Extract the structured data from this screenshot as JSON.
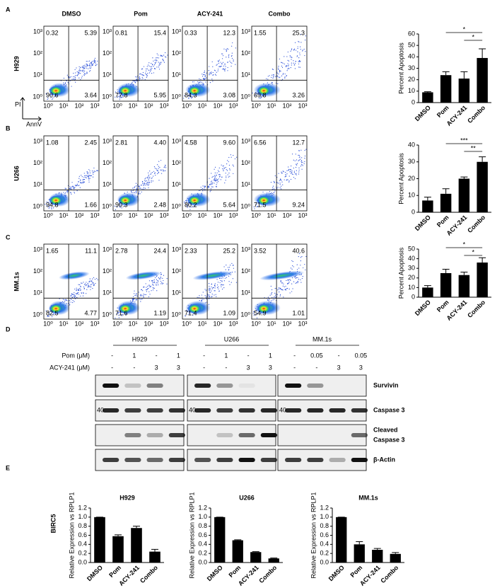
{
  "panel_letters": [
    "A",
    "B",
    "C",
    "D",
    "E"
  ],
  "flow": {
    "columns": [
      "DMSO",
      "Pom",
      "ACY-241",
      "Combo"
    ],
    "y_label": "PI",
    "x_label": "AnnV",
    "axis_ticks": [
      "10⁰",
      "10¹",
      "10²",
      "10³"
    ],
    "rows": [
      {
        "name": "H929",
        "plots": [
          [
            "0.32",
            "5.39",
            "90.6",
            "3.64"
          ],
          [
            "0.81",
            "15.4",
            "77.8",
            "5.95"
          ],
          [
            "0.33",
            "12.3",
            "84.3",
            "3.08"
          ],
          [
            "1.55",
            "25.3",
            "69.8",
            "3.26"
          ]
        ]
      },
      {
        "name": "U266",
        "plots": [
          [
            "1.08",
            "2.45",
            "94.8",
            "1.66"
          ],
          [
            "2.81",
            "4.40",
            "90.3",
            "2.48"
          ],
          [
            "4.58",
            "9.60",
            "80.2",
            "5.64"
          ],
          [
            "6.56",
            "12.7",
            "71.5",
            "9.24"
          ]
        ]
      },
      {
        "name": "MM.1s",
        "plots": [
          [
            "1.65",
            "11.1",
            "82.5",
            "4.77"
          ],
          [
            "2.78",
            "24.4",
            "71.6",
            "1.19"
          ],
          [
            "2.33",
            "25.2",
            "71.4",
            "1.09"
          ],
          [
            "3.52",
            "40.6",
            "54.9",
            "1.01"
          ]
        ]
      }
    ]
  },
  "chart_data": [
    {
      "type": "bar",
      "ylabel": "Percent Apoptosis",
      "categories": [
        "DMSO",
        "Pom",
        "ACY-241",
        "Combo"
      ],
      "values": [
        9,
        24,
        21,
        39
      ],
      "errors": [
        0.5,
        3,
        6,
        8
      ],
      "color": "#000000",
      "ylim": [
        0,
        60
      ],
      "yticks": [
        0,
        10,
        20,
        30,
        40,
        50,
        60
      ],
      "significance": [
        {
          "label": "*",
          "between": [
            "Pom",
            "Combo"
          ]
        },
        {
          "label": "*",
          "between": [
            "ACY-241",
            "Combo"
          ]
        }
      ]
    },
    {
      "type": "bar",
      "ylabel": "Percent Apoptosis",
      "categories": [
        "DMSO",
        "Pom",
        "ACY-241",
        "Combo"
      ],
      "values": [
        7,
        11,
        20,
        30
      ],
      "errors": [
        2,
        3,
        1,
        3
      ],
      "color": "#000000",
      "ylim": [
        0,
        40
      ],
      "yticks": [
        0,
        10,
        20,
        30,
        40
      ],
      "significance": [
        {
          "label": "***",
          "between": [
            "Pom",
            "Combo"
          ]
        },
        {
          "label": "**",
          "between": [
            "ACY-241",
            "Combo"
          ]
        }
      ]
    },
    {
      "type": "bar",
      "ylabel": "Percent Apoptosis",
      "categories": [
        "DMSO",
        "Pom",
        "ACY-241",
        "Combo"
      ],
      "values": [
        10,
        25,
        23,
        36
      ],
      "errors": [
        2,
        4,
        3,
        5
      ],
      "color": "#000000",
      "ylim": [
        0,
        50
      ],
      "yticks": [
        0,
        10,
        20,
        30,
        40,
        50
      ],
      "significance": [
        {
          "label": "*",
          "between": [
            "Pom",
            "Combo"
          ]
        },
        {
          "label": "*",
          "between": [
            "ACY-241",
            "Combo"
          ]
        }
      ]
    },
    {
      "type": "bar",
      "title": "H929",
      "ylabel": "Relative Expression vs RPLP1",
      "categories": [
        "DMSO",
        "Pom",
        "ACY-241",
        "Combo"
      ],
      "values": [
        1.0,
        0.58,
        0.76,
        0.24
      ],
      "errors": [
        0,
        0.03,
        0.04,
        0.05
      ],
      "color": "#000000",
      "ylim": [
        0,
        1.2
      ],
      "yticks": [
        {
          "value": 0,
          "label": "0.0"
        },
        {
          "value": 0.2,
          "label": "0.2"
        },
        {
          "value": 0.4,
          "label": "0.4"
        },
        {
          "value": 0.6,
          "label": "0.6"
        },
        {
          "value": 0.8,
          "label": "0.8"
        },
        {
          "value": 1,
          "label": "1.0"
        },
        {
          "value": 1.2,
          "label": "1.2"
        }
      ]
    },
    {
      "type": "bar",
      "title": "U266",
      "ylabel": "Relative Expression vs RPLP1",
      "categories": [
        "DMSO",
        "Pom",
        "ACY-241",
        "Combo"
      ],
      "values": [
        1.0,
        0.49,
        0.23,
        0.09
      ],
      "errors": [
        0,
        0.01,
        0.01,
        0.01
      ],
      "color": "#000000",
      "ylim": [
        0,
        1.2
      ],
      "yticks": [
        {
          "value": 0,
          "label": "0.0"
        },
        {
          "value": 0.2,
          "label": "0.2"
        },
        {
          "value": 0.4,
          "label": "0.4"
        },
        {
          "value": 0.6,
          "label": "0.6"
        },
        {
          "value": 0.8,
          "label": "0.8"
        },
        {
          "value": 1,
          "label": "1.0"
        },
        {
          "value": 1.2,
          "label": "1.2"
        }
      ]
    },
    {
      "type": "bar",
      "title": "MM.1s",
      "ylabel": "Relative Expression vs RPLP1",
      "categories": [
        "DMSO",
        "Pom",
        "ACY-241",
        "Combo"
      ],
      "values": [
        1.0,
        0.4,
        0.28,
        0.19
      ],
      "errors": [
        0,
        0.06,
        0.03,
        0.03
      ],
      "color": "#000000",
      "ylim": [
        0,
        1.2
      ],
      "yticks": [
        {
          "value": 0,
          "label": "0.0"
        },
        {
          "value": 0.2,
          "label": "0.2"
        },
        {
          "value": 0.4,
          "label": "0.4"
        },
        {
          "value": 0.6,
          "label": "0.6"
        },
        {
          "value": 0.8,
          "label": "0.8"
        },
        {
          "value": 1,
          "label": "1.0"
        },
        {
          "value": 1.2,
          "label": "1.2"
        }
      ]
    }
  ],
  "western": {
    "treatment_labels": [
      "Pom (μM)",
      "ACY-241 (μM)"
    ],
    "marker": "40",
    "groups": [
      {
        "name": "H929",
        "pom": [
          "-",
          "1",
          "-",
          "1"
        ],
        "acy": [
          "-",
          "-",
          "3",
          "3"
        ]
      },
      {
        "name": "U266",
        "pom": [
          "-",
          "1",
          "-",
          "1"
        ],
        "acy": [
          "-",
          "-",
          "3",
          "3"
        ]
      },
      {
        "name": "MM.1s",
        "pom": [
          "-",
          "0.05",
          "-",
          "0.05"
        ],
        "acy": [
          "-",
          "-",
          "3",
          "3"
        ]
      }
    ],
    "proteins": [
      "Survivin",
      "Caspase 3",
      "Cleaved",
      "Caspase 3",
      "β-Actin"
    ]
  },
  "panel_e_label": "BIRC5"
}
